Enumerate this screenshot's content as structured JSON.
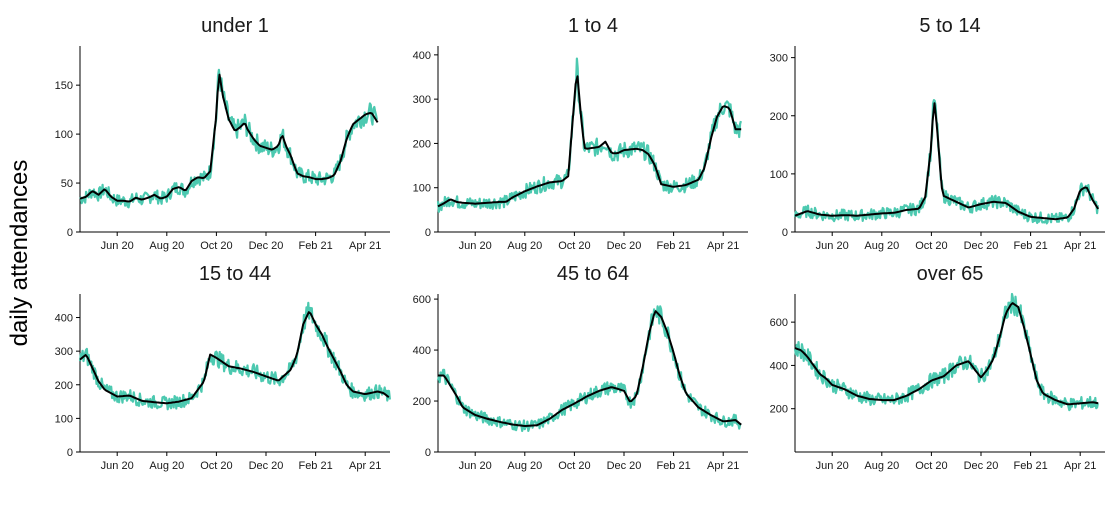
{
  "ylabel": "daily attendances",
  "colors": {
    "raw": "#4cc9b0",
    "smooth": "#000000"
  },
  "chart_data": [
    {
      "type": "line",
      "title": "under 1",
      "xlabel": "",
      "ylabel": "daily attendances",
      "x_ticks": [
        "Jun 20",
        "Aug 20",
        "Oct 20",
        "Dec 20",
        "Feb 21",
        "Apr 21"
      ],
      "y_ticks": [
        0,
        50,
        100,
        150
      ],
      "ylim": [
        0,
        190
      ],
      "grid": false,
      "series": [
        {
          "values": [
            [
              0,
              34
            ],
            [
              0.5,
              36
            ],
            [
              1,
              42
            ],
            [
              1.5,
              38
            ],
            [
              2,
              44
            ],
            [
              2.5,
              36
            ],
            [
              3,
              32
            ],
            [
              3.5,
              32
            ],
            [
              4,
              31
            ],
            [
              4.5,
              35
            ],
            [
              5,
              33
            ],
            [
              5.5,
              35
            ],
            [
              6,
              38
            ],
            [
              6.5,
              34
            ],
            [
              7,
              36
            ],
            [
              7.5,
              44
            ],
            [
              8,
              46
            ],
            [
              8.5,
              42
            ],
            [
              9,
              52
            ],
            [
              9.5,
              56
            ],
            [
              10,
              55
            ],
            [
              10.5,
              62
            ],
            [
              11,
              120
            ],
            [
              11.2,
              165
            ],
            [
              11.5,
              140
            ],
            [
              12,
              115
            ],
            [
              12.5,
              103
            ],
            [
              13,
              108
            ],
            [
              13.3,
              112
            ],
            [
              13.5,
              105
            ],
            [
              14,
              95
            ],
            [
              14.5,
              88
            ],
            [
              15,
              86
            ],
            [
              15.5,
              84
            ],
            [
              16,
              88
            ],
            [
              16.3,
              100
            ],
            [
              16.6,
              88
            ],
            [
              17,
              78
            ],
            [
              17.5,
              60
            ],
            [
              18,
              57
            ],
            [
              18.5,
              56
            ],
            [
              19,
              54
            ],
            [
              19.5,
              54
            ],
            [
              20,
              55
            ],
            [
              20.5,
              58
            ],
            [
              21,
              72
            ],
            [
              21.5,
              95
            ],
            [
              22,
              110
            ],
            [
              22.5,
              115
            ],
            [
              23,
              120
            ],
            [
              23.5,
              122
            ],
            [
              24,
              112
            ]
          ]
        }
      ]
    },
    {
      "type": "line",
      "title": "1 to 4",
      "xlabel": "",
      "ylabel": "daily attendances",
      "x_ticks": [
        "Jun 20",
        "Aug 20",
        "Oct 20",
        "Dec 20",
        "Feb 21",
        "Apr 21"
      ],
      "y_ticks": [
        0,
        100,
        200,
        300,
        400
      ],
      "ylim": [
        0,
        420
      ],
      "grid": false,
      "series": [
        {
          "values": [
            [
              0,
              58
            ],
            [
              0.5,
              65
            ],
            [
              1,
              74
            ],
            [
              1.5,
              68
            ],
            [
              2,
              66
            ],
            [
              3,
              64
            ],
            [
              4,
              66
            ],
            [
              5,
              68
            ],
            [
              5.5,
              68
            ],
            [
              6,
              78
            ],
            [
              7,
              92
            ],
            [
              8,
              103
            ],
            [
              9,
              112
            ],
            [
              10,
              115
            ],
            [
              10.5,
              126
            ],
            [
              11,
              300
            ],
            [
              11.2,
              368
            ],
            [
              11.5,
              270
            ],
            [
              11.8,
              190
            ],
            [
              12,
              188
            ],
            [
              13,
              192
            ],
            [
              13.5,
              204
            ],
            [
              14,
              178
            ],
            [
              14.5,
              178
            ],
            [
              15,
              185
            ],
            [
              16,
              188
            ],
            [
              16.5,
              185
            ],
            [
              17,
              175
            ],
            [
              17.5,
              150
            ],
            [
              18,
              108
            ],
            [
              19,
              102
            ],
            [
              20,
              106
            ],
            [
              21,
              118
            ],
            [
              21.5,
              145
            ],
            [
              22,
              210
            ],
            [
              22.5,
              260
            ],
            [
              23,
              285
            ],
            [
              23.5,
              280
            ],
            [
              24,
              232
            ],
            [
              24.5,
              232
            ]
          ]
        }
      ]
    },
    {
      "type": "line",
      "title": "5 to 14",
      "xlabel": "",
      "ylabel": "daily attendances",
      "x_ticks": [
        "Jun 20",
        "Aug 20",
        "Oct 20",
        "Dec 20",
        "Feb 21",
        "Apr 21"
      ],
      "y_ticks": [
        0,
        100,
        200,
        300
      ],
      "ylim": [
        0,
        320
      ],
      "grid": false,
      "series": [
        {
          "values": [
            [
              0,
              28
            ],
            [
              0.5,
              32
            ],
            [
              1,
              36
            ],
            [
              2,
              30
            ],
            [
              3,
              28
            ],
            [
              4,
              29
            ],
            [
              5,
              28
            ],
            [
              6,
              30
            ],
            [
              7,
              32
            ],
            [
              8,
              33
            ],
            [
              9,
              38
            ],
            [
              10,
              40
            ],
            [
              10.5,
              60
            ],
            [
              11,
              150
            ],
            [
              11.2,
              232
            ],
            [
              11.5,
              170
            ],
            [
              11.8,
              80
            ],
            [
              12,
              62
            ],
            [
              13,
              52
            ],
            [
              14,
              42
            ],
            [
              15,
              48
            ],
            [
              16,
              52
            ],
            [
              17,
              50
            ],
            [
              18,
              35
            ],
            [
              19,
              26
            ],
            [
              20,
              24
            ],
            [
              21,
              22
            ],
            [
              22,
              25
            ],
            [
              22.5,
              40
            ],
            [
              23,
              72
            ],
            [
              23.5,
              78
            ],
            [
              24,
              55
            ],
            [
              24.5,
              38
            ]
          ]
        }
      ]
    },
    {
      "type": "line",
      "title": "15 to 44",
      "xlabel": "",
      "ylabel": "daily attendances",
      "x_ticks": [
        "Jun 20",
        "Aug 20",
        "Oct 20",
        "Dec 20",
        "Feb 21",
        "Apr 21"
      ],
      "y_ticks": [
        0,
        100,
        200,
        300,
        400
      ],
      "ylim": [
        0,
        470
      ],
      "grid": false,
      "series": [
        {
          "values": [
            [
              0,
              275
            ],
            [
              0.5,
              290
            ],
            [
              1,
              250
            ],
            [
              1.5,
              210
            ],
            [
              2,
              185
            ],
            [
              3,
              165
            ],
            [
              4,
              168
            ],
            [
              5,
              152
            ],
            [
              6,
              148
            ],
            [
              7,
              145
            ],
            [
              8,
              150
            ],
            [
              9,
              160
            ],
            [
              10,
              210
            ],
            [
              10.5,
              290
            ],
            [
              11,
              280
            ],
            [
              12,
              255
            ],
            [
              13,
              248
            ],
            [
              14,
              238
            ],
            [
              15,
              225
            ],
            [
              16,
              212
            ],
            [
              17,
              245
            ],
            [
              17.5,
              290
            ],
            [
              18,
              380
            ],
            [
              18.5,
              420
            ],
            [
              19,
              380
            ],
            [
              19.5,
              350
            ],
            [
              20,
              310
            ],
            [
              21,
              240
            ],
            [
              21.5,
              200
            ],
            [
              22,
              180
            ],
            [
              23,
              172
            ],
            [
              24,
              180
            ],
            [
              24.5,
              175
            ],
            [
              25,
              160
            ]
          ]
        }
      ]
    },
    {
      "type": "line",
      "title": "45 to 64",
      "xlabel": "",
      "ylabel": "daily attendances",
      "x_ticks": [
        "Jun 20",
        "Aug 20",
        "Oct 20",
        "Dec 20",
        "Feb 21",
        "Apr 21"
      ],
      "y_ticks": [
        0,
        200,
        400,
        600
      ],
      "ylim": [
        0,
        620
      ],
      "grid": false,
      "series": [
        {
          "values": [
            [
              0,
              300
            ],
            [
              0.5,
              300
            ],
            [
              1,
              260
            ],
            [
              1.5,
              220
            ],
            [
              2,
              175
            ],
            [
              3,
              145
            ],
            [
              4,
              130
            ],
            [
              5,
              118
            ],
            [
              6,
              108
            ],
            [
              7,
              102
            ],
            [
              8,
              105
            ],
            [
              9,
              130
            ],
            [
              10,
              165
            ],
            [
              11,
              190
            ],
            [
              12,
              218
            ],
            [
              13,
              240
            ],
            [
              14,
              255
            ],
            [
              15,
              240
            ],
            [
              15.5,
              195
            ],
            [
              16,
              220
            ],
            [
              16.5,
              330
            ],
            [
              17,
              460
            ],
            [
              17.5,
              555
            ],
            [
              18,
              530
            ],
            [
              18.5,
              470
            ],
            [
              19,
              390
            ],
            [
              19.5,
              300
            ],
            [
              20,
              230
            ],
            [
              21,
              175
            ],
            [
              22,
              145
            ],
            [
              23,
              120
            ],
            [
              24,
              125
            ],
            [
              24.5,
              105
            ]
          ]
        }
      ]
    },
    {
      "type": "line",
      "title": "over 65",
      "xlabel": "",
      "ylabel": "daily attendances",
      "x_ticks": [
        "Jun 20",
        "Aug 20",
        "Oct 20",
        "Dec 20",
        "Feb 21",
        "Apr 21"
      ],
      "y_ticks": [
        200,
        400,
        600
      ],
      "ylim": [
        0,
        730
      ],
      "grid": false,
      "series": [
        {
          "values": [
            [
              0,
              480
            ],
            [
              0.5,
              470
            ],
            [
              1,
              440
            ],
            [
              1.5,
              400
            ],
            [
              2,
              360
            ],
            [
              2.5,
              340
            ],
            [
              3,
              310
            ],
            [
              4,
              290
            ],
            [
              5,
              260
            ],
            [
              6,
              245
            ],
            [
              7,
              240
            ],
            [
              8,
              240
            ],
            [
              9,
              260
            ],
            [
              10,
              290
            ],
            [
              11,
              330
            ],
            [
              12,
              350
            ],
            [
              13,
              400
            ],
            [
              14,
              420
            ],
            [
              14.5,
              380
            ],
            [
              15,
              345
            ],
            [
              15.5,
              380
            ],
            [
              16,
              430
            ],
            [
              16.5,
              530
            ],
            [
              17,
              640
            ],
            [
              17.5,
              690
            ],
            [
              18,
              670
            ],
            [
              18.5,
              570
            ],
            [
              19,
              450
            ],
            [
              19.5,
              330
            ],
            [
              20,
              270
            ],
            [
              21,
              240
            ],
            [
              22,
              220
            ],
            [
              23,
              225
            ],
            [
              24,
              230
            ],
            [
              24.5,
              225
            ]
          ]
        }
      ]
    }
  ]
}
